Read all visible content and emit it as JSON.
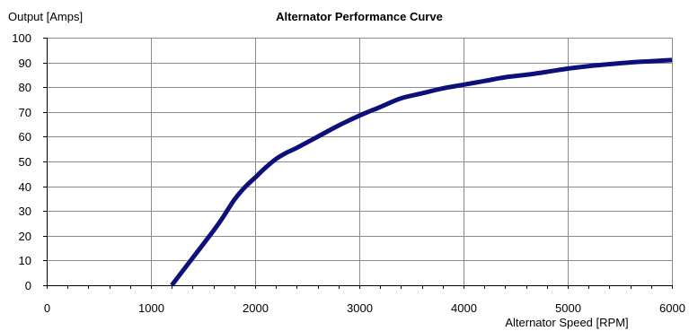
{
  "chart_data": {
    "type": "line",
    "title": "Alternator Performance Curve",
    "ylabel": "Output [Amps]",
    "xlabel": "Alternator Speed [RPM]",
    "xlim": [
      0,
      6000
    ],
    "ylim": [
      0,
      100
    ],
    "x_ticks": [
      0,
      1000,
      2000,
      3000,
      4000,
      5000,
      6000
    ],
    "y_ticks": [
      0,
      10,
      20,
      30,
      40,
      50,
      60,
      70,
      80,
      90,
      100
    ],
    "grid": true,
    "series": [
      {
        "color": "#0d0f7a",
        "x": [
          1200,
          1400,
          1600,
          1700,
          1800,
          1900,
          2000,
          2100,
          2200,
          2300,
          2400,
          2600,
          2800,
          3000,
          3200,
          3400,
          3600,
          3800,
          4000,
          4200,
          4400,
          4600,
          4800,
          5000,
          5200,
          5400,
          5600,
          5800,
          6000
        ],
        "y": [
          0,
          11,
          22,
          28,
          34.5,
          39.5,
          43.5,
          47.5,
          51,
          53.5,
          55.5,
          60,
          64.5,
          68.5,
          72,
          75.5,
          77.5,
          79.5,
          81,
          82.5,
          84,
          85,
          86.2,
          87.5,
          88.5,
          89.3,
          90,
          90.5,
          91
        ]
      }
    ]
  }
}
